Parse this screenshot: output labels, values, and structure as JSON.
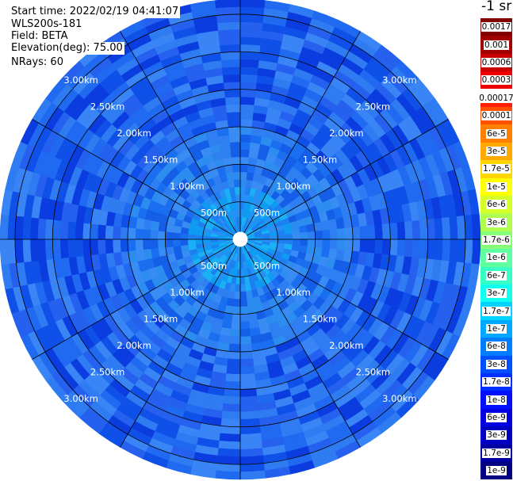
{
  "info": {
    "start_time": "Start time: 2022/02/19 04:41:07",
    "instrument": "WLS200s-181",
    "field": "Field: BETA",
    "elevation": "Elevation(deg): 75.00",
    "nrays": "NRays: 60"
  },
  "colorbar": {
    "unit": "-1 sr",
    "labels": [
      "0.0017",
      "0.001",
      "0.0006",
      "0.0003",
      "0.00017",
      "0.0001",
      "6e-5",
      "3e-5",
      "1.7e-5",
      "1e-5",
      "6e-6",
      "3e-6",
      "1.7e-6",
      "1e-6",
      "6e-7",
      "3e-7",
      "1.7e-7",
      "1e-7",
      "6e-8",
      "3e-8",
      "1.7e-8",
      "1e-8",
      "6e-9",
      "3e-9",
      "1.7e-9",
      "1e-9"
    ],
    "colors": [
      "#800000",
      "#a00000",
      "#c80000",
      "#ef0000",
      "#ff2000",
      "#ff5000",
      "#ff8000",
      "#ffaa00",
      "#ffd400",
      "#ffff00",
      "#d6ff29",
      "#b0ff50",
      "#88ff79",
      "#60ff9f",
      "#38ffc6",
      "#10ffee",
      "#00d4ff",
      "#00a8ff",
      "#007cff",
      "#0050ff",
      "#0030ff",
      "#0010ff",
      "#0000e0",
      "#0000c0",
      "#0000a0",
      "#000080"
    ]
  },
  "chart_data": {
    "type": "heatmap",
    "projection": "polar-ppi",
    "field": "BETA",
    "elevation_deg": 75.0,
    "n_rays": 60,
    "range_rings": [
      "500m",
      "1.00km",
      "1.50km",
      "2.00km",
      "2.50km",
      "3.00km"
    ],
    "range_ring_values_km": [
      0.5,
      1.0,
      1.5,
      2.0,
      2.5,
      3.0
    ],
    "max_range_km": 3.2,
    "spokes_deg": [
      0,
      30,
      60,
      90,
      120,
      150,
      180,
      210,
      240,
      270,
      300,
      330
    ],
    "gate_spacing_km": 0.1,
    "value_bands": [
      {
        "range_km": [
          0.1,
          0.7
        ],
        "value": "6e-8"
      },
      {
        "range_km": [
          0.7,
          1.5
        ],
        "value": "3e-8"
      },
      {
        "range_km": [
          1.5,
          3.2
        ],
        "value": "1.7e-8"
      }
    ]
  }
}
